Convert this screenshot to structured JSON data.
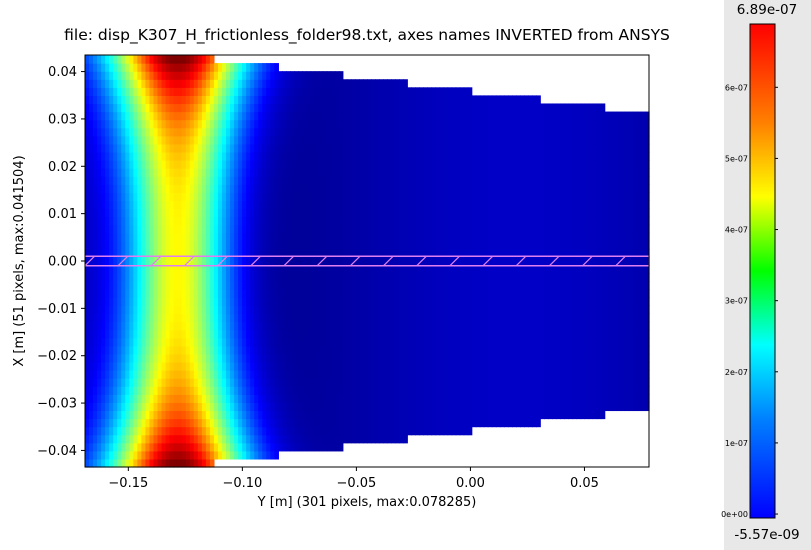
{
  "chart_data": {
    "type": "heatmap",
    "title": "file: disp_K307_H_frictionless_folder98.txt, axes names INVERTED from ANSYS",
    "xlabel": "Y [m] (301 pixels, max:0.078285)",
    "ylabel": "X [m] (51 pixels, max:0.041504)",
    "xlim": [
      -0.169,
      0.0783
    ],
    "ylim": [
      -0.0435,
      0.0435
    ],
    "x_ticks": [
      -0.15,
      -0.1,
      -0.05,
      0.0,
      0.05
    ],
    "x_tick_labels": [
      "−0.15",
      "−0.10",
      "−0.05",
      "0.00",
      "0.05"
    ],
    "y_ticks": [
      0.04,
      0.03,
      0.02,
      0.01,
      0.0,
      -0.01,
      -0.02,
      -0.03,
      -0.04
    ],
    "y_tick_labels": [
      "0.04",
      "0.03",
      "0.02",
      "0.01",
      "0.00",
      "−0.01",
      "−0.02",
      "−0.03",
      "−0.04"
    ],
    "grid": false,
    "colorscale": "jet",
    "colorbar": {
      "min": -5.57e-09,
      "max": 6.89e-07,
      "min_label": "-5.57e-09",
      "max_label": "6.89e-07",
      "ticks": [
        0,
        1e-07,
        2e-07,
        3e-07,
        4e-07,
        5e-07,
        6e-07
      ],
      "tick_labels": [
        "0e+00",
        "1e-07",
        "2e-07",
        "3e-07",
        "4e-07",
        "5e-07",
        "6e-07"
      ]
    },
    "field_peak_x": -0.128,
    "field_edge": [
      {
        "x": -0.169,
        "half_height": 0.0435
      },
      {
        "x": -0.14,
        "half_height": 0.0435
      },
      {
        "x": -0.112,
        "half_height": 0.0415
      },
      {
        "x": -0.084,
        "half_height": 0.04
      },
      {
        "x": -0.056,
        "half_height": 0.0383
      },
      {
        "x": -0.028,
        "half_height": 0.0366
      },
      {
        "x": 0.001,
        "half_height": 0.0348
      },
      {
        "x": 0.03,
        "half_height": 0.0331
      },
      {
        "x": 0.058,
        "half_height": 0.0314
      },
      {
        "x": 0.0783,
        "half_height": 0.0314
      }
    ],
    "hatched_band": {
      "y_min": -0.001,
      "y_max": 0.001,
      "color": "#e080f0"
    }
  }
}
